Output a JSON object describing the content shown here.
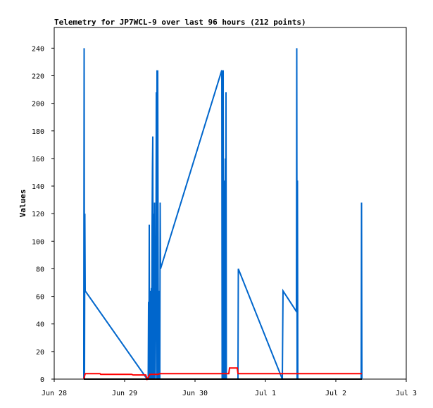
{
  "chart_data": {
    "type": "line",
    "title": "Telemetry for JP7WCL-9 over last 96 hours (212 points)",
    "xlabel": "",
    "ylabel": "Values",
    "x_ticks": [
      "Jun 28",
      "Jun 29",
      "Jun 30",
      "Jul 1",
      "Jul 2",
      "Jul 3"
    ],
    "x_range_days": [
      0,
      5
    ],
    "y_ticks": [
      0,
      20,
      40,
      60,
      80,
      100,
      120,
      140,
      160,
      180,
      200,
      220,
      240
    ],
    "ylim": [
      0,
      255
    ],
    "grid": false,
    "legend": "none",
    "series": [
      {
        "color": "#0066cc",
        "points": [
          [
            0.42,
            0
          ],
          [
            0.42,
            25
          ],
          [
            0.425,
            240
          ],
          [
            0.43,
            0
          ],
          [
            0.435,
            120
          ],
          [
            0.44,
            64
          ],
          [
            1.32,
            0
          ],
          [
            1.335,
            0
          ],
          [
            1.34,
            56
          ],
          [
            1.345,
            0
          ],
          [
            1.35,
            112
          ],
          [
            1.355,
            0
          ],
          [
            1.36,
            64
          ],
          [
            1.37,
            0
          ],
          [
            1.375,
            22
          ],
          [
            1.38,
            66
          ],
          [
            1.385,
            0
          ],
          [
            1.39,
            110
          ],
          [
            1.395,
            153
          ],
          [
            1.4,
            176
          ],
          [
            1.405,
            0
          ],
          [
            1.41,
            120
          ],
          [
            1.415,
            48
          ],
          [
            1.42,
            0
          ],
          [
            1.425,
            128
          ],
          [
            1.43,
            0
          ],
          [
            1.435,
            33
          ],
          [
            1.44,
            47
          ],
          [
            1.445,
            74
          ],
          [
            1.45,
            208
          ],
          [
            1.455,
            0
          ],
          [
            1.46,
            224
          ],
          [
            1.465,
            0
          ],
          [
            1.47,
            224
          ],
          [
            1.48,
            0
          ],
          [
            1.49,
            64
          ],
          [
            1.5,
            0
          ],
          [
            1.505,
            128
          ],
          [
            1.51,
            80
          ],
          [
            2.38,
            224
          ],
          [
            2.385,
            0
          ],
          [
            2.39,
            176
          ],
          [
            2.395,
            0
          ],
          [
            2.4,
            224
          ],
          [
            2.405,
            0
          ],
          [
            2.41,
            128
          ],
          [
            2.415,
            32
          ],
          [
            2.42,
            144
          ],
          [
            2.425,
            0
          ],
          [
            2.43,
            160
          ],
          [
            2.435,
            0
          ],
          [
            2.44,
            208
          ],
          [
            2.445,
            0
          ],
          [
            2.455,
            0
          ],
          [
            2.46,
            0
          ],
          [
            2.61,
            0
          ],
          [
            2.615,
            80
          ],
          [
            3.24,
            0
          ],
          [
            3.25,
            64
          ],
          [
            3.44,
            49
          ],
          [
            3.445,
            240
          ],
          [
            3.45,
            0
          ],
          [
            3.455,
            144
          ],
          [
            3.46,
            0
          ],
          [
            4.36,
            0
          ],
          [
            4.365,
            128
          ],
          [
            4.37,
            0
          ]
        ]
      },
      {
        "color": "#ff0000",
        "points": [
          [
            0.42,
            0
          ],
          [
            0.44,
            4
          ],
          [
            0.65,
            4
          ],
          [
            0.66,
            3.5
          ],
          [
            1.1,
            3.5
          ],
          [
            1.12,
            3
          ],
          [
            1.3,
            3
          ],
          [
            1.32,
            0
          ],
          [
            1.36,
            3.5
          ],
          [
            1.48,
            3.5
          ],
          [
            1.5,
            4
          ],
          [
            2.38,
            4
          ],
          [
            2.4,
            4
          ],
          [
            2.48,
            4
          ],
          [
            2.49,
            8
          ],
          [
            2.6,
            8
          ],
          [
            2.61,
            4
          ],
          [
            4.37,
            4
          ]
        ]
      },
      {
        "color": "#000000",
        "points": [
          [
            0.42,
            0
          ],
          [
            4.37,
            0
          ]
        ]
      }
    ]
  }
}
